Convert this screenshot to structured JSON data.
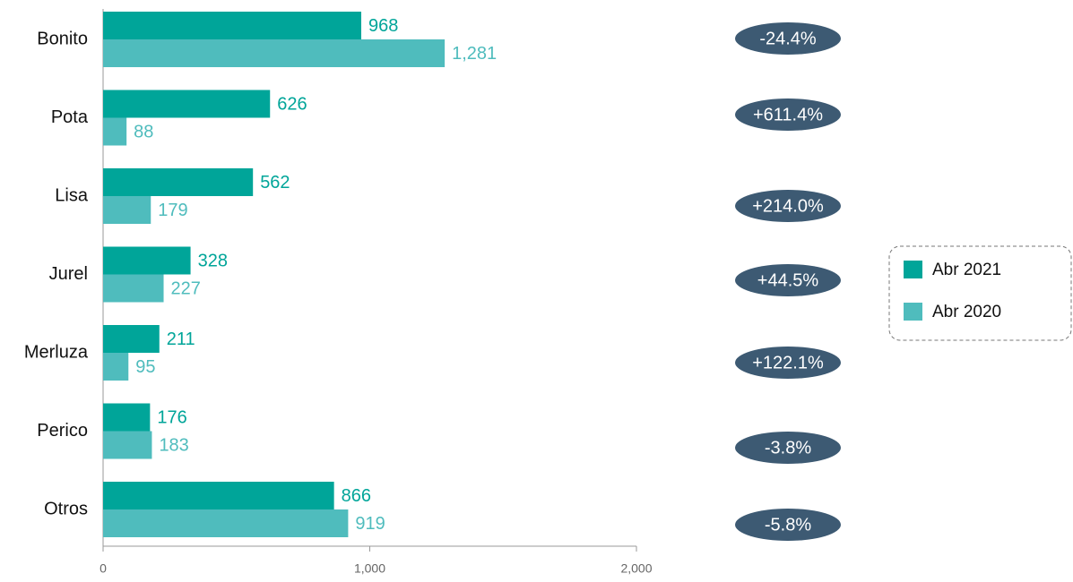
{
  "chart_data": {
    "type": "bar",
    "orientation": "horizontal",
    "categories": [
      "Bonito",
      "Pota",
      "Lisa",
      "Jurel",
      "Merluza",
      "Perico",
      "Otros"
    ],
    "series": [
      {
        "name": "Abr 2021",
        "color": "#00a599",
        "values": [
          968,
          626,
          562,
          328,
          211,
          176,
          866
        ]
      },
      {
        "name": "Abr 2020",
        "color": "#4fbcbd",
        "values": [
          1281,
          88,
          179,
          227,
          95,
          183,
          919
        ],
        "value_labels": [
          "1,281",
          "88",
          "179",
          "227",
          "95",
          "183",
          "919"
        ]
      }
    ],
    "changes": [
      "-24.4%",
      "+611.4%",
      "+214.0%",
      "+44.5%",
      "+122.1%",
      "-3.8%",
      "-5.8%"
    ],
    "change_color": "#3d5a73",
    "xlim": [
      0,
      2000
    ],
    "xticks": [
      0,
      {
        "value": 1000,
        "label": "1,000"
      },
      {
        "value": 2000,
        "label": "2,000"
      }
    ],
    "legend": "right"
  }
}
